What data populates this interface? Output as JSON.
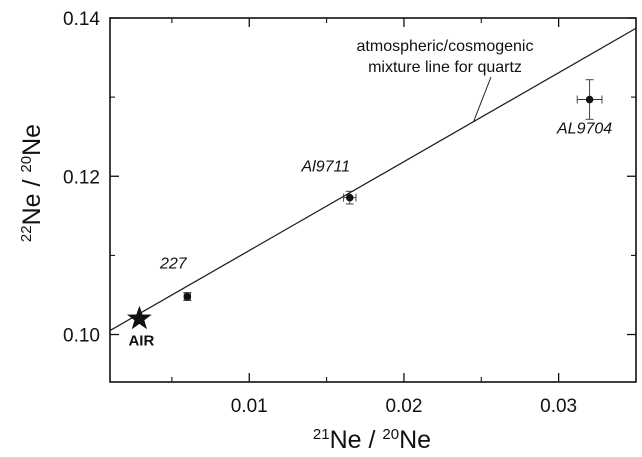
{
  "chart_data": {
    "type": "scatter",
    "title": "",
    "xlabel": {
      "sup1": "21",
      "base1": "Ne",
      "sep": " / ",
      "sup2": "20",
      "base2": "Ne"
    },
    "ylabel": {
      "sup1": "22",
      "base1": "Ne",
      "sep": " / ",
      "sup2": "20",
      "base2": "Ne"
    },
    "xlim": [
      0.001,
      0.035
    ],
    "ylim": [
      0.094,
      0.14
    ],
    "x_ticks": [
      {
        "value": 0.01,
        "label": "0.01"
      },
      {
        "value": 0.02,
        "label": "0.02"
      },
      {
        "value": 0.03,
        "label": "0.03"
      }
    ],
    "x_minor_ticks": [
      0.005,
      0.015,
      0.025
    ],
    "y_ticks": [
      {
        "value": 0.1,
        "label": "0.10"
      },
      {
        "value": 0.12,
        "label": "0.12"
      },
      {
        "value": 0.14,
        "label": "0.14"
      }
    ],
    "y_minor_ticks": [
      0.11,
      0.13
    ],
    "grid": false,
    "points": [
      {
        "label": "227",
        "x": 0.006,
        "y": 0.1048,
        "xerr": 0.0002,
        "yerr": 0.0005
      },
      {
        "label": "Al9711",
        "x": 0.0165,
        "y": 0.1173,
        "xerr": 0.0004,
        "yerr": 0.0008
      },
      {
        "label": "AL9704",
        "x": 0.032,
        "y": 0.1297,
        "xerr": 0.0008,
        "yerr": 0.0025
      }
    ],
    "reference_point": {
      "label": "AIR",
      "x": 0.0029,
      "y": 0.102,
      "marker": "star"
    },
    "line": {
      "x": [
        0.001,
        0.035
      ],
      "y": [
        0.1005,
        0.1387
      ],
      "annotation_lines": [
        "atmospheric/cosmogenic",
        "mixture line for quartz"
      ]
    }
  }
}
